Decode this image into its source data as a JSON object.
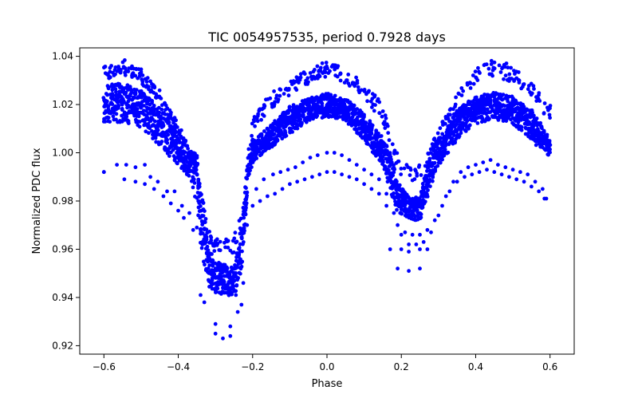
{
  "chart_data": {
    "type": "scatter",
    "title": "TIC 0054957535, period 0.7928 days",
    "xlabel": "Phase",
    "ylabel": "Normalized PDC flux",
    "xlim": [
      -0.665,
      0.665
    ],
    "ylim": [
      0.9165,
      1.0435
    ],
    "xticks": [
      -0.6,
      -0.4,
      -0.2,
      0.0,
      0.2,
      0.4,
      0.6
    ],
    "xtick_labels": [
      "−0.6",
      "−0.4",
      "−0.2",
      "0.0",
      "0.2",
      "0.4",
      "0.6"
    ],
    "yticks": [
      0.92,
      0.94,
      0.96,
      0.98,
      1.0,
      1.02,
      1.04
    ],
    "ytick_labels": [
      "0.92",
      "0.94",
      "0.96",
      "0.98",
      "1.00",
      "1.02",
      "1.04"
    ],
    "grid": false,
    "marker_color": "#0000ff",
    "light_curve": {
      "phase_range": [
        -0.6,
        0.6
      ],
      "bands": [
        {
          "name": "upper",
          "points": [
            [
              -0.6,
              1.036
            ],
            [
              -0.57,
              1.037
            ],
            [
              -0.55,
              1.039
            ],
            [
              -0.5,
              1.035
            ],
            [
              -0.45,
              1.026
            ],
            [
              -0.4,
              1.012
            ],
            [
              -0.36,
              0.998
            ],
            [
              -0.34,
              0.985
            ],
            [
              -0.32,
              0.97
            ],
            [
              -0.31,
              0.965
            ],
            [
              -0.25,
              0.965
            ],
            [
              -0.23,
              0.975
            ],
            [
              -0.21,
              0.995
            ],
            [
              -0.2,
              1.015
            ],
            [
              -0.15,
              1.025
            ],
            [
              -0.1,
              1.03
            ],
            [
              -0.05,
              1.035
            ],
            [
              0.0,
              1.038
            ],
            [
              0.05,
              1.035
            ],
            [
              0.1,
              1.029
            ],
            [
              0.15,
              1.02
            ],
            [
              0.18,
              1.005
            ],
            [
              0.2,
              0.995
            ],
            [
              0.25,
              0.995
            ],
            [
              0.27,
              1.0
            ],
            [
              0.3,
              1.01
            ],
            [
              0.35,
              1.025
            ],
            [
              0.4,
              1.035
            ],
            [
              0.45,
              1.039
            ],
            [
              0.5,
              1.036
            ],
            [
              0.55,
              1.03
            ],
            [
              0.6,
              1.02
            ]
          ]
        },
        {
          "name": "main",
          "points": [
            [
              -0.6,
              1.022
            ],
            [
              -0.55,
              1.023
            ],
            [
              -0.5,
              1.02
            ],
            [
              -0.45,
              1.013
            ],
            [
              -0.4,
              1.004
            ],
            [
              -0.37,
              0.997
            ],
            [
              -0.35,
              0.992
            ],
            [
              -0.34,
              0.975
            ],
            [
              -0.32,
              0.955
            ],
            [
              -0.3,
              0.95
            ],
            [
              -0.25,
              0.948
            ],
            [
              -0.23,
              0.96
            ],
            [
              -0.21,
              0.998
            ],
            [
              -0.2,
              1.002
            ],
            [
              -0.15,
              1.008
            ],
            [
              -0.1,
              1.015
            ],
            [
              -0.05,
              1.019
            ],
            [
              0.0,
              1.021
            ],
            [
              0.05,
              1.019
            ],
            [
              0.1,
              1.012
            ],
            [
              0.15,
              1.002
            ],
            [
              0.17,
              0.995
            ],
            [
              0.19,
              0.983
            ],
            [
              0.22,
              0.978
            ],
            [
              0.25,
              0.978
            ],
            [
              0.27,
              0.99
            ],
            [
              0.3,
              1.003
            ],
            [
              0.35,
              1.013
            ],
            [
              0.4,
              1.019
            ],
            [
              0.45,
              1.021
            ],
            [
              0.5,
              1.019
            ],
            [
              0.55,
              1.013
            ],
            [
              0.6,
              1.003
            ]
          ]
        },
        {
          "name": "lower",
          "points": [
            [
              -0.6,
              1.011
            ],
            [
              -0.55,
              1.013
            ],
            [
              -0.5,
              1.01
            ],
            [
              -0.45,
              1.003
            ],
            [
              -0.4,
              0.995
            ],
            [
              -0.37,
              0.99
            ],
            [
              -0.35,
              0.98
            ],
            [
              -0.34,
              0.96
            ],
            [
              -0.32,
              0.945
            ],
            [
              -0.3,
              0.942
            ],
            [
              -0.25,
              0.94
            ],
            [
              -0.23,
              0.95
            ],
            [
              -0.21,
              0.99
            ],
            [
              -0.2,
              0.996
            ],
            [
              -0.15,
              1.002
            ],
            [
              -0.1,
              1.008
            ],
            [
              -0.05,
              1.013
            ],
            [
              0.0,
              1.015
            ],
            [
              0.05,
              1.013
            ],
            [
              0.1,
              1.005
            ],
            [
              0.15,
              0.995
            ],
            [
              0.17,
              0.985
            ],
            [
              0.19,
              0.975
            ],
            [
              0.22,
              0.972
            ],
            [
              0.25,
              0.972
            ],
            [
              0.27,
              0.982
            ],
            [
              0.3,
              0.995
            ],
            [
              0.35,
              1.005
            ],
            [
              0.4,
              1.012
            ],
            [
              0.45,
              1.014
            ],
            [
              0.5,
              1.012
            ],
            [
              0.55,
              1.005
            ],
            [
              0.6,
              0.998
            ]
          ]
        }
      ],
      "outlier_rows": [
        [
          -0.6,
          0.992,
          -0.565,
          0.995,
          -0.54,
          0.995,
          -0.515,
          0.994,
          -0.49,
          0.995,
          -0.475,
          0.99,
          -0.455,
          0.988,
          -0.43,
          0.984,
          -0.41,
          0.984,
          -0.39,
          0.978,
          -0.37,
          0.975,
          -0.35,
          0.969,
          -0.335,
          0.962,
          -0.32,
          0.957,
          -0.3,
          0.952,
          -0.28,
          0.946,
          -0.26,
          0.944,
          -0.245,
          0.941,
          -0.23,
          0.937,
          -0.215,
          0.97,
          -0.19,
          0.985,
          -0.17,
          0.989,
          -0.145,
          0.991,
          -0.125,
          0.992,
          -0.105,
          0.993,
          -0.085,
          0.994,
          -0.065,
          0.996,
          -0.045,
          0.998,
          -0.025,
          0.999,
          0.0,
          1.0,
          0.02,
          1.0,
          0.04,
          0.999,
          0.06,
          0.997,
          0.08,
          0.995,
          0.1,
          0.993,
          0.12,
          0.991,
          0.14,
          0.989,
          0.16,
          0.983,
          0.18,
          0.975,
          0.2,
          0.966,
          0.22,
          0.962,
          0.24,
          0.962,
          0.26,
          0.963,
          0.28,
          0.967,
          0.3,
          0.974,
          0.32,
          0.982,
          0.34,
          0.988,
          0.36,
          0.992,
          0.38,
          0.994,
          0.4,
          0.995,
          0.42,
          0.996,
          0.44,
          0.997,
          0.46,
          0.995,
          0.48,
          0.994,
          0.5,
          0.993,
          0.52,
          0.992,
          0.54,
          0.991,
          0.56,
          0.988,
          0.58,
          0.985
        ],
        [
          -0.545,
          0.989,
          -0.515,
          0.988,
          -0.49,
          0.987,
          -0.465,
          0.985,
          -0.44,
          0.982,
          -0.42,
          0.979,
          -0.4,
          0.976,
          -0.385,
          0.973,
          -0.36,
          0.968,
          -0.335,
          0.963,
          -0.31,
          0.958,
          -0.29,
          0.954,
          -0.27,
          0.951,
          -0.25,
          0.949,
          -0.225,
          0.946,
          -0.2,
          0.978,
          -0.18,
          0.98,
          -0.16,
          0.982,
          -0.14,
          0.983,
          -0.12,
          0.985,
          -0.1,
          0.987,
          -0.08,
          0.988,
          -0.06,
          0.989,
          -0.04,
          0.99,
          -0.02,
          0.991,
          0.0,
          0.992,
          0.02,
          0.992,
          0.04,
          0.991,
          0.06,
          0.99,
          0.08,
          0.989,
          0.1,
          0.987,
          0.12,
          0.985,
          0.14,
          0.983,
          0.16,
          0.978,
          0.19,
          0.97,
          0.21,
          0.967,
          0.23,
          0.966,
          0.25,
          0.966,
          0.27,
          0.968,
          0.29,
          0.972,
          0.31,
          0.978,
          0.33,
          0.984,
          0.35,
          0.988,
          0.37,
          0.99,
          0.39,
          0.991,
          0.41,
          0.992,
          0.43,
          0.993,
          0.45,
          0.992,
          0.47,
          0.991,
          0.49,
          0.99,
          0.51,
          0.989,
          0.53,
          0.988,
          0.55,
          0.986,
          0.57,
          0.984,
          0.59,
          0.981
        ]
      ],
      "isolated_points": [
        [
          -0.3,
          0.929
        ],
        [
          -0.3,
          0.925
        ],
        [
          -0.28,
          0.923
        ],
        [
          -0.26,
          0.928
        ],
        [
          -0.26,
          0.924
        ],
        [
          -0.24,
          0.934
        ],
        [
          -0.33,
          0.938
        ],
        [
          -0.34,
          0.941
        ],
        [
          0.17,
          0.96
        ],
        [
          0.19,
          0.952
        ],
        [
          0.2,
          0.96
        ],
        [
          0.22,
          0.959
        ],
        [
          0.22,
          0.951
        ],
        [
          0.25,
          0.952
        ],
        [
          0.25,
          0.96
        ],
        [
          0.27,
          0.96
        ],
        [
          -0.6,
          0.992
        ],
        [
          0.585,
          0.981
        ]
      ]
    }
  }
}
